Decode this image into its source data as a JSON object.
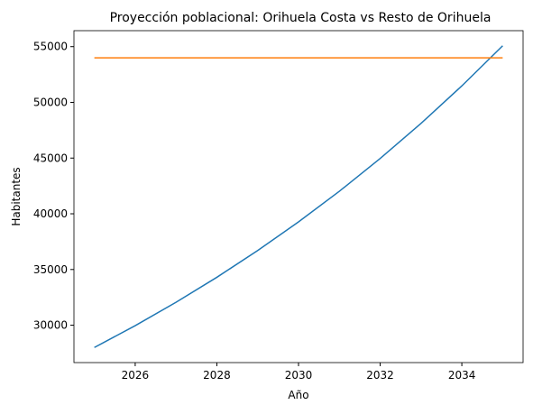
{
  "chart_data": {
    "type": "line",
    "title": "Proyección poblacional: Orihuela Costa vs Resto de Orihuela",
    "x_label": "Año",
    "y_label": "Habitantes",
    "x": [
      2025,
      2026,
      2027,
      2028,
      2029,
      2030,
      2031,
      2032,
      2033,
      2034,
      2035
    ],
    "series": [
      {
        "color": "#1f77b4",
        "values": [
          28000,
          29960,
          32057,
          34301,
          36702,
          39271,
          42020,
          44962,
          48109,
          51477,
          55080
        ]
      },
      {
        "color": "#ff7f0e",
        "values": [
          54000,
          54000,
          54000,
          54000,
          54000,
          54000,
          54000,
          54000,
          54000,
          54000,
          54000
        ]
      }
    ],
    "xlim": [
      2024.5,
      2035.5
    ],
    "xticks": [
      2026,
      2028,
      2030,
      2032,
      2034
    ],
    "ylim": [
      26646,
      56434
    ],
    "yticks": [
      30000,
      35000,
      40000,
      45000,
      50000,
      55000
    ]
  }
}
